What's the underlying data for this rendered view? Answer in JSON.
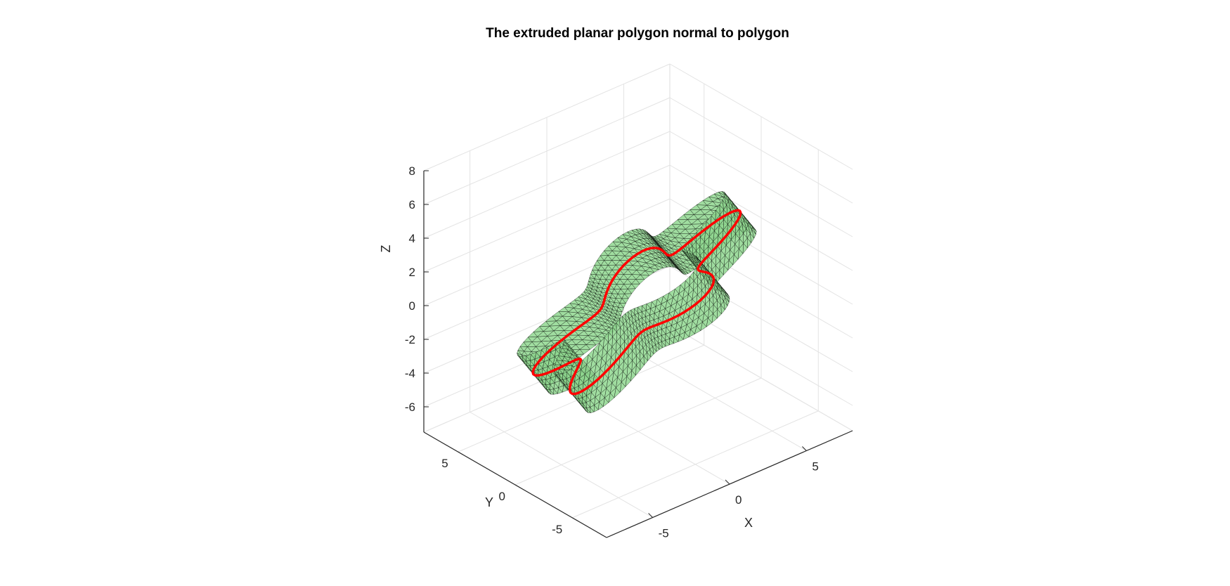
{
  "chart_data": {
    "type": "surface3d",
    "title": "The extruded planar polygon normal to polygon",
    "xlabel": "X",
    "ylabel": "Y",
    "zlabel": "Z",
    "xlim": [
      -8,
      8
    ],
    "ylim": [
      -8,
      8
    ],
    "zlim": [
      -7.5,
      8
    ],
    "xticks": [
      -5,
      0,
      5
    ],
    "yticks": [
      -5,
      0,
      5
    ],
    "zticks": [
      -6,
      -4,
      -2,
      0,
      2,
      4,
      6,
      8
    ],
    "xtick_labels": [
      "-5",
      "0",
      "5"
    ],
    "ytick_labels": [
      "-5",
      "0",
      "5"
    ],
    "ztick_labels": [
      "-6",
      "-4",
      "-2",
      "0",
      "2",
      "4",
      "6",
      "8"
    ],
    "grid": true,
    "view": "isometric",
    "surface": {
      "description_shape": "polar curve r = 5.5 + 1.5*sin(5*theta), tilted plane, extruded along plane normal",
      "lobes": 5,
      "base_radius": 5.5,
      "lobe_amplitude": 1.5,
      "extrusion_half_thickness": 1.4,
      "face_color": "#8fd78f",
      "edge_color": "#000000",
      "face_alpha": 0.85
    },
    "curve": {
      "color": "#ff0000",
      "line_width": 3.5
    }
  }
}
